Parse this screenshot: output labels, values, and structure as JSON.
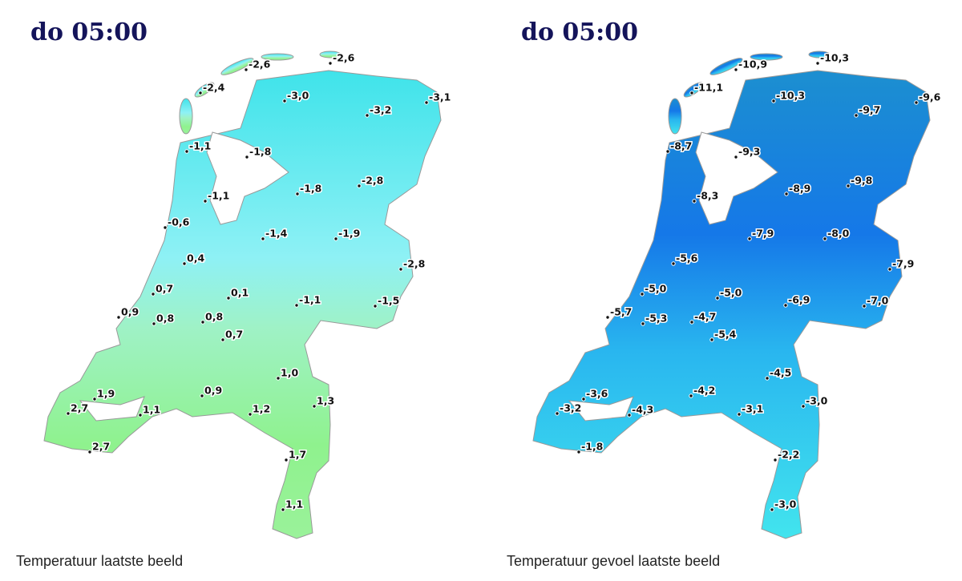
{
  "maps": [
    {
      "title": "do 05:00",
      "caption": "Temperatuur laatste beeld",
      "labels": [
        "-2,6",
        "-2,6",
        "-2,4",
        "-3,0",
        "-3,2",
        "-3,1",
        "-1,1",
        "-1,8",
        "-1,8",
        "-2,8",
        "-1,1",
        "-0,6",
        "-1,4",
        "-1,9",
        "0,4",
        "-2,8",
        "0,7",
        "0,1",
        "-1,1",
        "-1,5",
        "0,9",
        "0,8",
        "0,8",
        "0,7",
        "1,0",
        "0,9",
        "1,9",
        "1,3",
        "2,7",
        "1,1",
        "1,2",
        "2,7",
        "1,7",
        "1,1"
      ]
    },
    {
      "title": "do 05:00",
      "caption": "Temperatuur gevoel laatste beeld",
      "labels": [
        "-10,9",
        "-10,3",
        "-11,1",
        "-10,3",
        "-9,7",
        "-9,6",
        "-8,7",
        "-9,3",
        "-8,9",
        "-9,8",
        "-8,3",
        "-7,9",
        "-8,0",
        "-5,6",
        "-7,9",
        "-5,0",
        "-5,0",
        "-6,9",
        "-7,0",
        "-5,7",
        "-5,3",
        "-4,7",
        "-5,4",
        "-4,5",
        "-4,2",
        "-3,6",
        "-3,0",
        "-3,2",
        "-4,3",
        "-3,1",
        "-1,8",
        "-2,2",
        "-3,0"
      ]
    }
  ]
}
